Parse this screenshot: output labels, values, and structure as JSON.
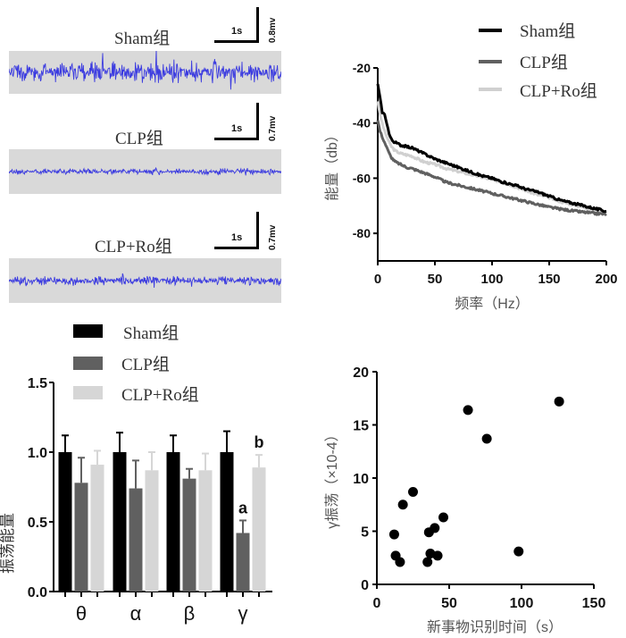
{
  "eeg_traces": {
    "traces": [
      {
        "group": "Sham组",
        "time_scale": "1s",
        "voltage_scale": "0.8mv",
        "trace_color": "#1f1fe0",
        "amplitude": 1.0
      },
      {
        "group": "CLP组",
        "time_scale": "1s",
        "voltage_scale": "0.7mv",
        "trace_color": "#1f1fe0",
        "amplitude": 0.55
      },
      {
        "group": "CLP+Ro组",
        "time_scale": "1s",
        "voltage_scale": "0.7mv",
        "trace_color": "#1f1fe0",
        "amplitude": 0.8
      }
    ],
    "background_color": "#d9d9d9"
  },
  "chart_data": [
    {
      "type": "line",
      "title": "",
      "xlabel": "频率（Hz）",
      "ylabel": "能量（db）",
      "xlim": [
        0,
        200
      ],
      "ylim": [
        -90,
        -20
      ],
      "xticks": [
        "0",
        "50",
        "100",
        "150",
        "200"
      ],
      "yticks": [
        "-20",
        "-40",
        "-60",
        "-80"
      ],
      "xtick_values": [
        0,
        50,
        100,
        150,
        200
      ],
      "ytick_values": [
        -20,
        -40,
        -60,
        -80
      ],
      "legend_position": "top-right",
      "grid": false,
      "series": [
        {
          "name": "Sham组",
          "color": "#000000",
          "x": [
            0,
            2,
            4,
            6,
            8,
            10,
            12,
            15,
            20,
            25,
            30,
            40,
            50,
            60,
            70,
            80,
            90,
            100,
            110,
            120,
            130,
            140,
            150,
            160,
            170,
            180,
            190,
            200
          ],
          "y": [
            -26,
            -31,
            -36,
            -37,
            -40,
            -44,
            -46,
            -47,
            -48,
            -48.5,
            -49,
            -51,
            -53,
            -54.5,
            -56,
            -57.5,
            -59,
            -60,
            -61.5,
            -62.5,
            -64,
            -65,
            -66.5,
            -68,
            -69,
            -70,
            -71,
            -72
          ]
        },
        {
          "name": "CLP组",
          "color": "#606060",
          "x": [
            0,
            2,
            4,
            6,
            8,
            10,
            12,
            15,
            20,
            25,
            30,
            40,
            50,
            60,
            70,
            80,
            90,
            100,
            110,
            120,
            130,
            140,
            150,
            160,
            170,
            180,
            190,
            200
          ],
          "y": [
            -39,
            -43,
            -45,
            -47,
            -49,
            -51,
            -52.5,
            -54,
            -55,
            -56,
            -56.5,
            -58,
            -59.5,
            -61.5,
            -62.5,
            -63.5,
            -64.5,
            -65.5,
            -66.5,
            -67.5,
            -68.5,
            -69.5,
            -70.5,
            -71.2,
            -71.8,
            -72.3,
            -72.8,
            -73
          ]
        },
        {
          "name": "CLP+Ro组",
          "color": "#d0d0d0",
          "x": [
            0,
            2,
            4,
            6,
            8,
            10,
            12,
            15,
            20,
            25,
            30,
            40,
            50,
            60,
            70,
            80,
            90,
            100,
            110,
            120,
            130,
            140,
            150,
            160,
            170,
            180,
            190,
            200
          ],
          "y": [
            -32,
            -37,
            -40,
            -43,
            -45,
            -47,
            -48.5,
            -50,
            -51,
            -51.5,
            -52,
            -54,
            -55,
            -56.5,
            -57.5,
            -58.5,
            -59.5,
            -60.5,
            -61.5,
            -63,
            -64.5,
            -66,
            -67,
            -68.5,
            -69.5,
            -70.5,
            -71.5,
            -72
          ]
        }
      ]
    },
    {
      "type": "bar",
      "title": "",
      "xlabel": "",
      "ylabel": "振荡能量",
      "ylim": [
        0,
        1.5
      ],
      "ytick_values": [
        0.0,
        0.5,
        1.0,
        1.5
      ],
      "yticks": [
        "0.0",
        "0.5",
        "1.0",
        "1.5"
      ],
      "categories": [
        "θ",
        "α",
        "β",
        "γ"
      ],
      "legend_position": "top",
      "grid": false,
      "series": [
        {
          "name": "Sham组",
          "color": "#000000",
          "values": [
            1.0,
            1.0,
            1.0,
            1.0
          ],
          "errors": [
            0.12,
            0.14,
            0.12,
            0.15
          ]
        },
        {
          "name": "CLP组",
          "color": "#606060",
          "values": [
            0.78,
            0.74,
            0.81,
            0.42
          ],
          "errors": [
            0.18,
            0.2,
            0.07,
            0.09
          ]
        },
        {
          "name": "CLP+Ro组",
          "color": "#d6d6d6",
          "values": [
            0.91,
            0.87,
            0.87,
            0.89
          ],
          "errors": [
            0.1,
            0.13,
            0.12,
            0.09
          ]
        }
      ],
      "annotations": [
        {
          "text": "a",
          "category": "γ",
          "series": "CLP组"
        },
        {
          "text": "b",
          "category": "γ",
          "series": "CLP+Ro组"
        }
      ]
    },
    {
      "type": "scatter",
      "title": "",
      "xlabel": "新事物识别时间（s）",
      "ylabel": "γ振荡（×10-4）",
      "xlim": [
        0,
        150
      ],
      "ylim": [
        0,
        20
      ],
      "xtick_values": [
        0,
        50,
        100,
        150
      ],
      "ytick_values": [
        0,
        5,
        10,
        15,
        20
      ],
      "xticks": [
        "0",
        "50",
        "100",
        "150"
      ],
      "yticks": [
        "0",
        "5",
        "10",
        "15",
        "20"
      ],
      "grid": false,
      "points": [
        {
          "x": 12,
          "y": 4.7
        },
        {
          "x": 13,
          "y": 2.7
        },
        {
          "x": 16,
          "y": 2.1
        },
        {
          "x": 18,
          "y": 7.5
        },
        {
          "x": 25,
          "y": 8.7
        },
        {
          "x": 35,
          "y": 2.1
        },
        {
          "x": 36,
          "y": 4.9
        },
        {
          "x": 37,
          "y": 2.9
        },
        {
          "x": 40,
          "y": 5.3
        },
        {
          "x": 42,
          "y": 2.7
        },
        {
          "x": 46,
          "y": 6.3
        },
        {
          "x": 63,
          "y": 16.4
        },
        {
          "x": 76,
          "y": 13.7
        },
        {
          "x": 98,
          "y": 3.1
        },
        {
          "x": 126,
          "y": 17.2
        }
      ]
    }
  ]
}
